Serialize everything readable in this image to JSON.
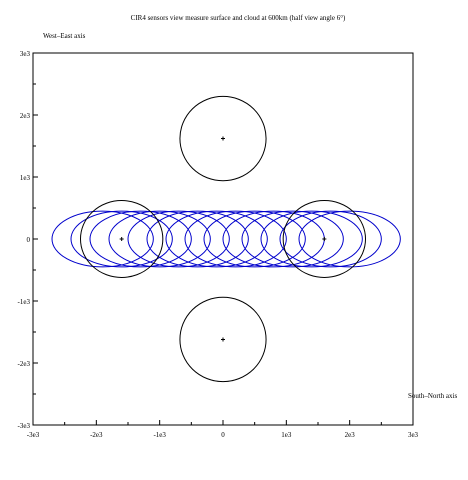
{
  "chart_data": {
    "type": "scatter",
    "title": "CIR4 sensors view measure surface and cloud at 600km (half view angle 6°)",
    "ylabel": "West–East axis",
    "xlabel": "South–North axis",
    "xlim": [
      -3,
      3
    ],
    "ylim": [
      -3,
      3
    ],
    "x_ticks": [
      {
        "value": -3,
        "label": "-3e3"
      },
      {
        "value": -2,
        "label": "-2e3"
      },
      {
        "value": -1,
        "label": "-1e3"
      },
      {
        "value": 0,
        "label": "0"
      },
      {
        "value": 1,
        "label": "1e3"
      },
      {
        "value": 2,
        "label": "2e3"
      },
      {
        "value": 3,
        "label": "3e3"
      }
    ],
    "y_ticks": [
      {
        "value": -3,
        "label": "-3e3"
      },
      {
        "value": -2,
        "label": "-2e3"
      },
      {
        "value": -1,
        "label": "-1e3"
      },
      {
        "value": 0,
        "label": "0"
      },
      {
        "value": 1,
        "label": "1e3"
      },
      {
        "value": 2,
        "label": "2e3"
      },
      {
        "value": 3,
        "label": "3e3"
      }
    ],
    "grid": false,
    "series": [
      {
        "style": "black circles with center markers",
        "color": "#000000",
        "circles": [
          {
            "cx": 0,
            "cy": 1.62,
            "rx": 0.68,
            "ry": 0.68
          },
          {
            "cx": 0,
            "cy": -1.62,
            "rx": 0.68,
            "ry": 0.68
          },
          {
            "cx": -1.6,
            "cy": 0,
            "rx": 0.65,
            "ry": 0.62
          },
          {
            "cx": 1.6,
            "cy": 0,
            "rx": 0.65,
            "ry": 0.62
          }
        ]
      },
      {
        "style": "blue ellipses",
        "color": "#0000cc",
        "ry": 0.45,
        "rx": 0.8,
        "centers_x": [
          -1.9,
          -1.6,
          -1.3,
          -1.0,
          -0.7,
          -0.4,
          -0.1,
          0.2,
          0.5,
          0.8,
          1.1,
          1.4,
          1.7,
          2.0
        ],
        "cy": 0
      }
    ]
  }
}
